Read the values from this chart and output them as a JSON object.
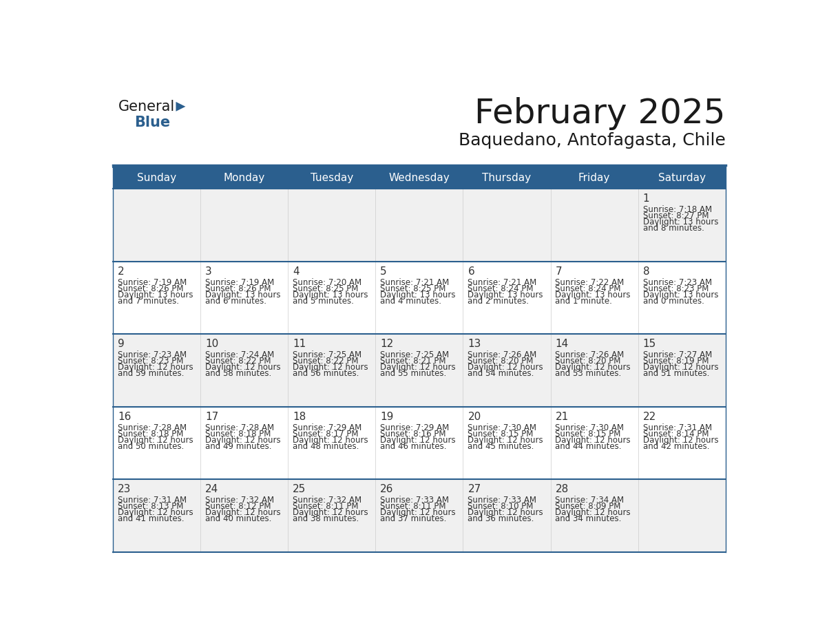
{
  "title": "February 2025",
  "subtitle": "Baquedano, Antofagasta, Chile",
  "header_bg_color": "#2B5F8E",
  "header_text_color": "#FFFFFF",
  "row_bg_odd": "#F0F0F0",
  "row_bg_even": "#FFFFFF",
  "day_number_color": "#333333",
  "text_color": "#333333",
  "line_color": "#2B5F8E",
  "days_of_week": [
    "Sunday",
    "Monday",
    "Tuesday",
    "Wednesday",
    "Thursday",
    "Friday",
    "Saturday"
  ],
  "weeks": [
    [
      null,
      null,
      null,
      null,
      null,
      null,
      1
    ],
    [
      2,
      3,
      4,
      5,
      6,
      7,
      8
    ],
    [
      9,
      10,
      11,
      12,
      13,
      14,
      15
    ],
    [
      16,
      17,
      18,
      19,
      20,
      21,
      22
    ],
    [
      23,
      24,
      25,
      26,
      27,
      28,
      null
    ]
  ],
  "cell_data": {
    "1": {
      "sunrise": "7:18 AM",
      "sunset": "8:27 PM",
      "daylight_hours": "13",
      "daylight_mins": "8 minutes."
    },
    "2": {
      "sunrise": "7:19 AM",
      "sunset": "8:26 PM",
      "daylight_hours": "13",
      "daylight_mins": "7 minutes."
    },
    "3": {
      "sunrise": "7:19 AM",
      "sunset": "8:26 PM",
      "daylight_hours": "13",
      "daylight_mins": "6 minutes."
    },
    "4": {
      "sunrise": "7:20 AM",
      "sunset": "8:25 PM",
      "daylight_hours": "13",
      "daylight_mins": "5 minutes."
    },
    "5": {
      "sunrise": "7:21 AM",
      "sunset": "8:25 PM",
      "daylight_hours": "13",
      "daylight_mins": "4 minutes."
    },
    "6": {
      "sunrise": "7:21 AM",
      "sunset": "8:24 PM",
      "daylight_hours": "13",
      "daylight_mins": "2 minutes."
    },
    "7": {
      "sunrise": "7:22 AM",
      "sunset": "8:24 PM",
      "daylight_hours": "13",
      "daylight_mins": "1 minute."
    },
    "8": {
      "sunrise": "7:23 AM",
      "sunset": "8:23 PM",
      "daylight_hours": "13",
      "daylight_mins": "0 minutes."
    },
    "9": {
      "sunrise": "7:23 AM",
      "sunset": "8:23 PM",
      "daylight_hours": "12",
      "daylight_mins": "59 minutes."
    },
    "10": {
      "sunrise": "7:24 AM",
      "sunset": "8:22 PM",
      "daylight_hours": "12",
      "daylight_mins": "58 minutes."
    },
    "11": {
      "sunrise": "7:25 AM",
      "sunset": "8:22 PM",
      "daylight_hours": "12",
      "daylight_mins": "56 minutes."
    },
    "12": {
      "sunrise": "7:25 AM",
      "sunset": "8:21 PM",
      "daylight_hours": "12",
      "daylight_mins": "55 minutes."
    },
    "13": {
      "sunrise": "7:26 AM",
      "sunset": "8:20 PM",
      "daylight_hours": "12",
      "daylight_mins": "54 minutes."
    },
    "14": {
      "sunrise": "7:26 AM",
      "sunset": "8:20 PM",
      "daylight_hours": "12",
      "daylight_mins": "53 minutes."
    },
    "15": {
      "sunrise": "7:27 AM",
      "sunset": "8:19 PM",
      "daylight_hours": "12",
      "daylight_mins": "51 minutes."
    },
    "16": {
      "sunrise": "7:28 AM",
      "sunset": "8:18 PM",
      "daylight_hours": "12",
      "daylight_mins": "50 minutes."
    },
    "17": {
      "sunrise": "7:28 AM",
      "sunset": "8:18 PM",
      "daylight_hours": "12",
      "daylight_mins": "49 minutes."
    },
    "18": {
      "sunrise": "7:29 AM",
      "sunset": "8:17 PM",
      "daylight_hours": "12",
      "daylight_mins": "48 minutes."
    },
    "19": {
      "sunrise": "7:29 AM",
      "sunset": "8:16 PM",
      "daylight_hours": "12",
      "daylight_mins": "46 minutes."
    },
    "20": {
      "sunrise": "7:30 AM",
      "sunset": "8:15 PM",
      "daylight_hours": "12",
      "daylight_mins": "45 minutes."
    },
    "21": {
      "sunrise": "7:30 AM",
      "sunset": "8:15 PM",
      "daylight_hours": "12",
      "daylight_mins": "44 minutes."
    },
    "22": {
      "sunrise": "7:31 AM",
      "sunset": "8:14 PM",
      "daylight_hours": "12",
      "daylight_mins": "42 minutes."
    },
    "23": {
      "sunrise": "7:31 AM",
      "sunset": "8:13 PM",
      "daylight_hours": "12",
      "daylight_mins": "41 minutes."
    },
    "24": {
      "sunrise": "7:32 AM",
      "sunset": "8:12 PM",
      "daylight_hours": "12",
      "daylight_mins": "40 minutes."
    },
    "25": {
      "sunrise": "7:32 AM",
      "sunset": "8:11 PM",
      "daylight_hours": "12",
      "daylight_mins": "38 minutes."
    },
    "26": {
      "sunrise": "7:33 AM",
      "sunset": "8:11 PM",
      "daylight_hours": "12",
      "daylight_mins": "37 minutes."
    },
    "27": {
      "sunrise": "7:33 AM",
      "sunset": "8:10 PM",
      "daylight_hours": "12",
      "daylight_mins": "36 minutes."
    },
    "28": {
      "sunrise": "7:34 AM",
      "sunset": "8:09 PM",
      "daylight_hours": "12",
      "daylight_mins": "34 minutes."
    }
  },
  "logo_text_general": "General",
  "logo_text_blue": "Blue",
  "logo_color_general": "#1a1a1a",
  "logo_color_blue": "#2B5F8E",
  "logo_triangle_color": "#2B5F8E",
  "title_fontsize": 36,
  "subtitle_fontsize": 18,
  "header_fontsize": 11,
  "day_num_fontsize": 11,
  "cell_text_fontsize": 8.5
}
